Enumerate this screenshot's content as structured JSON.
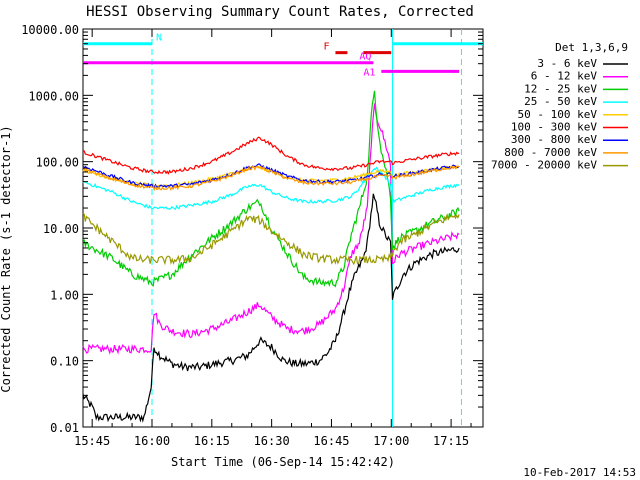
{
  "chart_data": {
    "type": "line",
    "title": "HESSI Observing Summary Count Rates, Corrected",
    "xlabel": "Start Time (06-Sep-14 15:42:42)",
    "ylabel": "Corrected Count Rate (s-1 detector-1)",
    "x_ticks": [
      "15:45",
      "16:00",
      "16:15",
      "16:30",
      "16:45",
      "17:00",
      "17:15"
    ],
    "x_tick_minutes": [
      945,
      960,
      975,
      990,
      1005,
      1020,
      1035
    ],
    "xlim_minutes": [
      942.7,
      1043
    ],
    "y_scale": "log",
    "ylim": [
      0.01,
      10000
    ],
    "y_ticks": [
      "0.01",
      "0.10",
      "1.00",
      "10.00",
      "100.00",
      "1000.00",
      "10000.00"
    ],
    "y_tick_values": [
      0.01,
      0.1,
      1,
      10,
      100,
      1000,
      10000
    ],
    "grid": false,
    "legend_position": "right",
    "legend_title": "Det 1,3,6,9",
    "series": [
      {
        "name": "3 - 6 keV",
        "color": "#000000",
        "x": [
          942.7,
          945,
          946,
          947,
          948,
          949,
          950,
          952,
          955,
          958,
          959.8,
          960.5,
          962,
          965,
          968,
          972,
          976,
          980,
          984,
          987,
          990,
          993,
          996,
          999,
          1002,
          1004,
          1006,
          1008,
          1009.5,
          1011,
          1013,
          1014,
          1015.5,
          1016.2,
          1017,
          1018,
          1019,
          1019.8,
          1020.3,
          1021,
          1023,
          1026,
          1030,
          1034,
          1037
        ],
        "y": [
          0.03,
          0.02,
          0.014,
          0.014,
          0.014,
          0.014,
          0.014,
          0.014,
          0.014,
          0.014,
          0.04,
          0.16,
          0.12,
          0.09,
          0.08,
          0.08,
          0.09,
          0.1,
          0.12,
          0.2,
          0.16,
          0.1,
          0.09,
          0.09,
          0.1,
          0.13,
          0.2,
          0.5,
          1.1,
          2,
          3.5,
          6,
          30,
          22,
          12,
          9,
          7,
          6,
          0.9,
          1.1,
          2,
          3,
          4,
          4.5,
          5
        ]
      },
      {
        "name": "6 - 12 keV",
        "color": "#ff00ff",
        "x": [
          942.7,
          950,
          959.8,
          960.5,
          962,
          965,
          970,
          975,
          980,
          984,
          987,
          990,
          994,
          998,
          1002,
          1006,
          1008,
          1010,
          1012,
          1014,
          1015,
          1015.8,
          1016.5,
          1017.5,
          1019,
          1019.8,
          1020.3,
          1022,
          1026,
          1030,
          1034,
          1037
        ],
        "y": [
          0.15,
          0.15,
          0.15,
          0.55,
          0.35,
          0.28,
          0.25,
          0.3,
          0.4,
          0.55,
          0.7,
          0.45,
          0.3,
          0.28,
          0.35,
          0.6,
          1.2,
          4,
          6,
          20,
          200,
          700,
          450,
          300,
          150,
          90,
          3,
          4,
          5,
          6,
          7,
          8
        ]
      },
      {
        "name": "12 - 25 keV",
        "color": "#00cc00",
        "x": [
          942.7,
          950,
          955,
          960,
          965,
          970,
          975,
          980,
          984,
          987,
          990,
          994,
          998,
          1002,
          1006,
          1008,
          1010,
          1012,
          1014,
          1015,
          1015.8,
          1016.5,
          1017.5,
          1019,
          1019.8,
          1020.3,
          1022,
          1026,
          1030,
          1034,
          1037
        ],
        "y": [
          6,
          3.5,
          2,
          1.5,
          2,
          4,
          7,
          12,
          20,
          25,
          10,
          4,
          1.8,
          1.5,
          1.5,
          2.5,
          8,
          20,
          60,
          500,
          1200,
          400,
          150,
          60,
          30,
          5,
          7,
          9,
          12,
          15,
          18
        ]
      },
      {
        "name": "25 - 50 keV",
        "color": "#00ffff",
        "x": [
          942.7,
          950,
          955,
          960,
          965,
          970,
          975,
          980,
          984,
          987,
          990,
          994,
          998,
          1002,
          1006,
          1010,
          1012,
          1014,
          1016,
          1018,
          1019.8,
          1020.3,
          1022,
          1026,
          1030,
          1034,
          1037
        ],
        "y": [
          50,
          35,
          25,
          20,
          20,
          22,
          25,
          32,
          42,
          45,
          35,
          28,
          25,
          25,
          26,
          30,
          40,
          60,
          80,
          65,
          45,
          25,
          27,
          32,
          38,
          42,
          45
        ]
      },
      {
        "name": "50 - 100 keV",
        "color": "#ffcc00",
        "x": [
          942.7,
          950,
          955,
          960,
          965,
          970,
          975,
          980,
          984,
          987,
          990,
          994,
          998,
          1002,
          1006,
          1010,
          1014,
          1017,
          1019.8,
          1020.3,
          1022,
          1026,
          1030,
          1034,
          1037
        ],
        "y": [
          75,
          55,
          47,
          44,
          44,
          48,
          55,
          66,
          78,
          82,
          70,
          58,
          52,
          52,
          53,
          57,
          65,
          72,
          70,
          62,
          64,
          70,
          76,
          82,
          85
        ]
      },
      {
        "name": "100 - 300 keV",
        "color": "#ff0000",
        "x": [
          942.7,
          950,
          955,
          960,
          965,
          970,
          975,
          980,
          984,
          987,
          990,
          994,
          998,
          1002,
          1006,
          1010,
          1014,
          1017,
          1019.8,
          1020.3,
          1022,
          1026,
          1030,
          1034,
          1037
        ],
        "y": [
          140,
          100,
          80,
          70,
          70,
          80,
          100,
          140,
          190,
          230,
          180,
          120,
          90,
          80,
          78,
          80,
          90,
          100,
          100,
          95,
          100,
          110,
          120,
          130,
          135
        ]
      },
      {
        "name": "300 - 800 keV",
        "color": "#0000ff",
        "x": [
          942.7,
          950,
          955,
          960,
          965,
          970,
          975,
          980,
          984,
          987,
          990,
          994,
          998,
          1002,
          1006,
          1010,
          1014,
          1017,
          1019.8,
          1020.3,
          1022,
          1026,
          1030,
          1034,
          1037
        ],
        "y": [
          85,
          60,
          48,
          43,
          43,
          46,
          53,
          65,
          82,
          88,
          75,
          60,
          52,
          50,
          50,
          52,
          58,
          64,
          65,
          60,
          62,
          68,
          75,
          82,
          86
        ]
      },
      {
        "name": "800 - 7000 keV",
        "color": "#ff9900",
        "x": [
          942.7,
          950,
          955,
          960,
          965,
          970,
          975,
          980,
          984,
          987,
          990,
          994,
          998,
          1002,
          1006,
          1010,
          1014,
          1017,
          1019.8,
          1020.3,
          1022,
          1026,
          1030,
          1034,
          1037
        ],
        "y": [
          78,
          55,
          45,
          40,
          40,
          43,
          50,
          62,
          78,
          83,
          70,
          56,
          48,
          47,
          47,
          49,
          55,
          60,
          62,
          57,
          59,
          65,
          72,
          80,
          84
        ]
      },
      {
        "name": "7000 - 20000 keV",
        "color": "#999900",
        "x": [
          942.7,
          948,
          952,
          955,
          958,
          962,
          966,
          970,
          975,
          980,
          984,
          987,
          990,
          994,
          998,
          1002,
          1006,
          1010,
          1014,
          1017,
          1019.8,
          1020.3,
          1022,
          1026,
          1030,
          1034,
          1037
        ],
        "y": [
          15,
          8,
          5,
          3.5,
          3.3,
          3.3,
          3.3,
          3.5,
          5.5,
          9,
          14,
          13,
          9,
          6,
          4,
          3.5,
          3.3,
          3.3,
          3.3,
          3.3,
          3.5,
          4,
          6,
          8,
          11,
          14,
          16
        ]
      }
    ],
    "annotations": [
      {
        "label": "N",
        "color": "#00ffff",
        "y": 6000,
        "segments": [
          [
            942.7,
            960
          ],
          [
            1020.3,
            1043
          ]
        ]
      },
      {
        "label": "F",
        "color": "#dd0000",
        "y": 4400,
        "segments": [
          [
            1006,
            1009
          ],
          [
            1013,
            1020
          ]
        ]
      },
      {
        "label": "AQ",
        "color": "#ff00ff",
        "y": 3100,
        "segments": [
          [
            942.7,
            1015.5
          ]
        ]
      },
      {
        "label": "A1",
        "color": "#ff00ff",
        "y": 2300,
        "segments": [
          [
            1017.5,
            1037
          ]
        ]
      }
    ],
    "vertical_lines": [
      {
        "x": 960,
        "color": "#00ffff",
        "style": "dashed"
      },
      {
        "x": 1020.3,
        "color": "#00ffff",
        "style": "solid"
      },
      {
        "x": 1037.6,
        "color": "#00ffff",
        "style": "dashed"
      }
    ]
  },
  "footer": {
    "date_stamp": "10-Feb-2017 14:53"
  }
}
